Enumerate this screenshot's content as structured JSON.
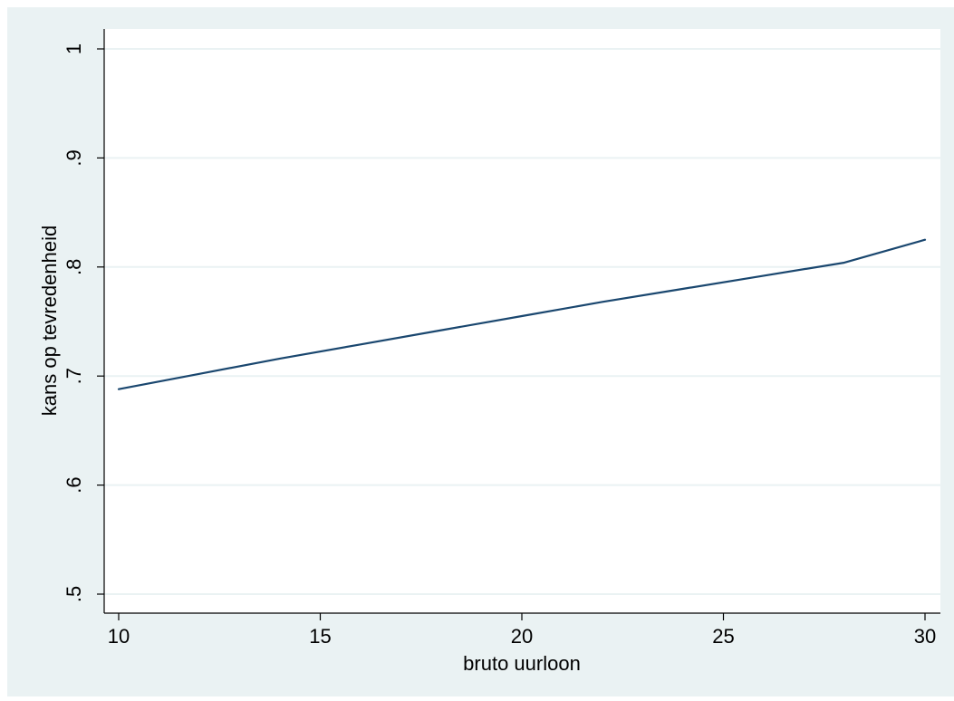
{
  "chart_data": {
    "type": "line",
    "title": "",
    "xlabel": "bruto uurloon",
    "ylabel": "kans op tevredenheid",
    "xlim": [
      10,
      30
    ],
    "ylim": [
      0.5,
      1.0
    ],
    "xticks": [
      {
        "value": 10,
        "label": "10"
      },
      {
        "value": 15,
        "label": "15"
      },
      {
        "value": 20,
        "label": "20"
      },
      {
        "value": 25,
        "label": "25"
      },
      {
        "value": 30,
        "label": "30"
      }
    ],
    "yticks": [
      {
        "value": 0.5,
        "label": ".5"
      },
      {
        "value": 0.6,
        "label": ".6"
      },
      {
        "value": 0.7,
        "label": ".7"
      },
      {
        "value": 0.8,
        "label": ".8"
      },
      {
        "value": 0.9,
        "label": ".9"
      },
      {
        "value": 1.0,
        "label": "1"
      }
    ],
    "grid": true,
    "legend": "none",
    "series": [
      {
        "x": [
          10,
          12,
          14,
          16,
          18,
          20,
          22,
          24,
          26,
          28,
          30
        ],
        "y": [
          0.688,
          0.702,
          0.716,
          0.729,
          0.742,
          0.755,
          0.768,
          0.78,
          0.792,
          0.804,
          0.825
        ],
        "color": "#1a476f"
      }
    ],
    "colors": {
      "outer_background": "#eaf2f3",
      "plot_background": "#ffffff",
      "grid": "#eaf2f3",
      "axis": "#000000"
    }
  }
}
